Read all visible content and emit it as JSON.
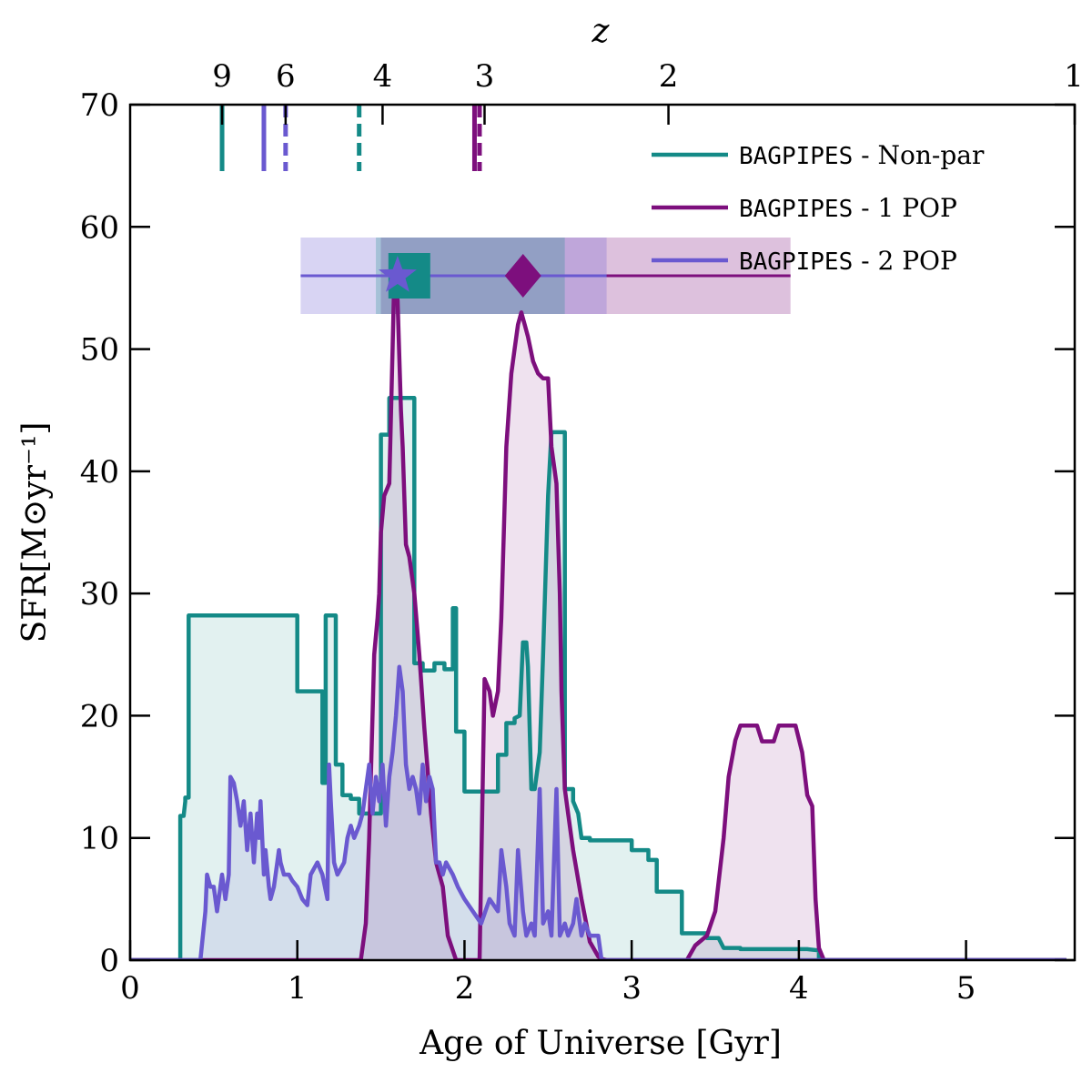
{
  "chart_data": {
    "type": "line",
    "xlabel": "Age of Universe [Gyr]",
    "ylabel": "SFR[M⊙yr⁻¹]",
    "top_axis_label": "z",
    "xlim": [
      0,
      5.65
    ],
    "ylim": [
      0,
      70
    ],
    "x_ticks": [
      0,
      1,
      2,
      3,
      4,
      5
    ],
    "y_ticks": [
      0,
      10,
      20,
      30,
      40,
      50,
      60,
      70
    ],
    "top_ticks": [
      {
        "label": "9",
        "age": 0.55
      },
      {
        "label": "6",
        "age": 0.93
      },
      {
        "label": "4",
        "age": 1.51
      },
      {
        "label": "3",
        "age": 2.12
      },
      {
        "label": "2",
        "age": 3.22
      },
      {
        "label": "1",
        "age": 5.65
      }
    ],
    "legend": {
      "location": "upper-right",
      "entries": [
        {
          "prefix": "BAGPIPES",
          "suffix": " - Non-par",
          "series": 0
        },
        {
          "prefix": "BAGPIPES",
          "suffix": " - 1 POP",
          "series": 1
        },
        {
          "prefix": "BAGPIPES",
          "suffix": " - 2 POP",
          "series": 2
        }
      ]
    },
    "series": [
      {
        "name": "BAGPIPES - Non-par",
        "color": "#148a87",
        "fill": "#e3f0ef",
        "x": [
          0.0,
          0.3,
          0.3,
          0.32,
          0.33,
          0.33,
          0.35,
          0.35,
          1.0,
          1.0,
          1.15,
          1.15,
          1.17,
          1.17,
          1.23,
          1.23,
          1.27,
          1.27,
          1.32,
          1.32,
          1.37,
          1.37,
          1.5,
          1.5,
          1.55,
          1.55,
          1.7,
          1.7,
          1.75,
          1.75,
          1.82,
          1.82,
          1.88,
          1.88,
          1.93,
          1.93,
          1.95,
          1.95,
          2.0,
          2.0,
          2.05,
          2.05,
          2.2,
          2.2,
          2.25,
          2.25,
          2.3,
          2.3,
          2.33,
          2.35,
          2.37,
          2.38,
          2.4,
          2.42,
          2.43,
          2.45,
          2.47,
          2.5,
          2.52,
          2.55,
          2.6,
          2.6,
          2.65,
          2.65,
          2.68,
          2.7,
          2.75,
          2.75,
          3.0,
          3.0,
          3.1,
          3.1,
          3.15,
          3.15,
          3.3,
          3.3,
          3.45,
          3.45,
          3.52,
          3.55,
          3.65,
          3.65,
          4.05,
          4.05,
          4.12,
          4.12,
          5.6
        ],
        "y": [
          0,
          0,
          11.8,
          11.8,
          13,
          13.3,
          13.3,
          28.2,
          28.2,
          22,
          22,
          14.5,
          14.5,
          28.2,
          28.2,
          16,
          16,
          13.5,
          13.5,
          13.2,
          13.2,
          12,
          12,
          43,
          43,
          46,
          46,
          24.3,
          24.3,
          23.7,
          23.7,
          24.3,
          24.3,
          23.8,
          23.8,
          28.8,
          28.8,
          18.7,
          18.7,
          13.8,
          13.8,
          13.8,
          13.8,
          16.8,
          16.8,
          19.4,
          19.4,
          19.8,
          20,
          26,
          26,
          24,
          14,
          14,
          15,
          17,
          25,
          38,
          43.2,
          43.2,
          43.2,
          14,
          14,
          13,
          12,
          10,
          10,
          9.8,
          9.8,
          9.0,
          9.0,
          8.2,
          8.2,
          5.6,
          5.6,
          2.2,
          2.2,
          1.8,
          1.8,
          1.0,
          1.0,
          0.9,
          0.9,
          0.9,
          0.8,
          0,
          0
        ]
      },
      {
        "name": "BAGPIPES - 1 POP",
        "color": "#7d0f7d",
        "fill": "#f2dff0",
        "x": [
          0.0,
          1.38,
          1.41,
          1.43,
          1.46,
          1.48,
          1.49,
          1.5,
          1.52,
          1.55,
          1.57,
          1.58,
          1.6,
          1.62,
          1.63,
          1.65,
          1.67,
          1.7,
          1.73,
          1.76,
          1.8,
          1.83,
          1.87,
          1.9,
          1.95,
          1.98,
          2.0,
          2.02,
          2.04,
          2.09,
          2.12,
          2.15,
          2.17,
          2.2,
          2.22,
          2.25,
          2.28,
          2.3,
          2.32,
          2.34,
          2.36,
          2.38,
          2.41,
          2.44,
          2.47,
          2.5,
          2.52,
          2.55,
          2.57,
          2.58,
          2.6,
          2.62,
          2.65,
          2.7,
          2.75,
          2.8,
          2.82,
          2.85,
          3.33,
          3.38,
          3.45,
          3.5,
          3.55,
          3.58,
          3.62,
          3.65,
          3.75,
          3.78,
          3.85,
          3.88,
          3.96,
          3.98,
          4.02,
          4.05,
          4.08,
          4.1,
          4.12,
          4.15,
          5.6
        ],
        "y": [
          0,
          0,
          3,
          10,
          25,
          28,
          30,
          35,
          38,
          39,
          50,
          56,
          54,
          45,
          42,
          34,
          33,
          30,
          25,
          19,
          12,
          8,
          6,
          2,
          0,
          0,
          0,
          0,
          0,
          0,
          23,
          22,
          20,
          22,
          28,
          42,
          48,
          50,
          52,
          53,
          52,
          51,
          49,
          48,
          47.6,
          47.6,
          42,
          39,
          30,
          22,
          14,
          12,
          9,
          5,
          1.5,
          0.3,
          0.1,
          0,
          0,
          1.2,
          2,
          4,
          10,
          15,
          18,
          19.2,
          19.2,
          17.9,
          17.9,
          19.2,
          19.2,
          19.2,
          17,
          13.5,
          12.6,
          5,
          1,
          0,
          0
        ]
      },
      {
        "name": "BAGPIPES - 2 POP",
        "color": "#6a59d0",
        "fill": "#dcd8f0",
        "x": [
          0.0,
          0.42,
          0.45,
          0.46,
          0.48,
          0.5,
          0.52,
          0.55,
          0.57,
          0.59,
          0.6,
          0.62,
          0.64,
          0.66,
          0.68,
          0.7,
          0.72,
          0.74,
          0.76,
          0.77,
          0.78,
          0.8,
          0.81,
          0.83,
          0.84,
          0.86,
          0.88,
          0.89,
          0.9,
          0.92,
          0.95,
          0.97,
          1.0,
          1.03,
          1.06,
          1.08,
          1.1,
          1.12,
          1.15,
          1.18,
          1.19,
          1.2,
          1.22,
          1.24,
          1.26,
          1.28,
          1.3,
          1.32,
          1.34,
          1.37,
          1.39,
          1.41,
          1.43,
          1.45,
          1.47,
          1.49,
          1.51,
          1.53,
          1.55,
          1.57,
          1.59,
          1.61,
          1.63,
          1.65,
          1.67,
          1.69,
          1.71,
          1.73,
          1.75,
          1.77,
          1.79,
          1.81,
          1.83,
          1.85,
          1.87,
          1.89,
          1.91,
          1.93,
          1.96,
          2.0,
          2.05,
          2.1,
          2.15,
          2.2,
          2.22,
          2.25,
          2.27,
          2.3,
          2.32,
          2.35,
          2.37,
          2.4,
          2.42,
          2.45,
          2.47,
          2.5,
          2.52,
          2.55,
          2.57,
          2.6,
          2.62,
          2.65,
          2.67,
          2.7,
          2.72,
          2.75,
          2.77,
          2.8,
          2.82,
          2.85,
          5.6
        ],
        "y": [
          0,
          0,
          4,
          7,
          6,
          6,
          4,
          7,
          5,
          7,
          15,
          14.5,
          13,
          11,
          13,
          9,
          12,
          8,
          12,
          10,
          13,
          7,
          9,
          6,
          5,
          6,
          8,
          9,
          8,
          7,
          7,
          6.5,
          6,
          5,
          4.5,
          7,
          7.5,
          8,
          7,
          5,
          16,
          13,
          8,
          7,
          7.5,
          8,
          10,
          11,
          10,
          11,
          12,
          14,
          16,
          12,
          15,
          13,
          16,
          11,
          15,
          17,
          20,
          24,
          22,
          16,
          14,
          15,
          14,
          12,
          16,
          13,
          15,
          14,
          8,
          8,
          7,
          8,
          7.5,
          7,
          6,
          5,
          4,
          3,
          5,
          4,
          9,
          6,
          3,
          2,
          9,
          4,
          2,
          3,
          2,
          14,
          3,
          4,
          2,
          14,
          2,
          3,
          2,
          3,
          5,
          2,
          3,
          2,
          2,
          2,
          0,
          0,
          0
        ]
      }
    ],
    "formation_markers": [
      {
        "series": 0,
        "age": 0.55,
        "style": "solid"
      },
      {
        "series": 2,
        "age": 0.8,
        "style": "solid"
      },
      {
        "series": 2,
        "age": 0.93,
        "style": "dashed"
      },
      {
        "series": 0,
        "age": 1.37,
        "style": "dashed"
      },
      {
        "series": 1,
        "age": 2.06,
        "style": "solid"
      },
      {
        "series": 1,
        "age": 2.09,
        "style": "dashed"
      }
    ],
    "summary_markers": [
      {
        "series": 0,
        "shape": "square",
        "age": 1.67,
        "sfr": 56,
        "range": [
          1.47,
          2.6
        ]
      },
      {
        "series": 1,
        "shape": "diamond",
        "age": 2.35,
        "sfr": 56,
        "range": [
          1.5,
          3.95
        ]
      },
      {
        "series": 2,
        "shape": "star",
        "age": 1.6,
        "sfr": 56,
        "range": [
          1.02,
          2.85
        ]
      }
    ]
  }
}
